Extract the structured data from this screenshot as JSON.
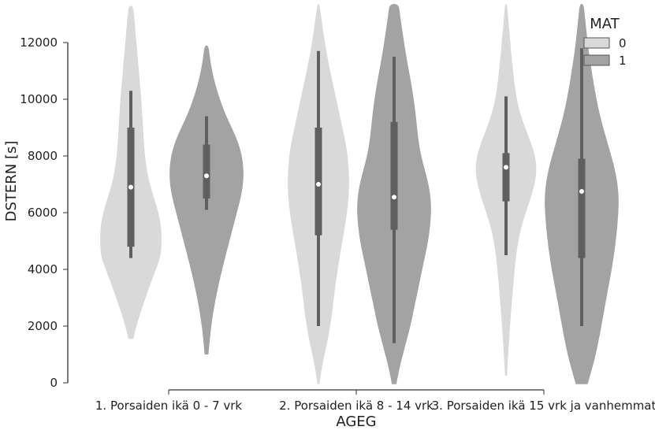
{
  "chart_data": {
    "type": "violin",
    "xlabel": "AGEG",
    "ylabel": "DSTERN [s]",
    "ylim": [
      0,
      12000
    ],
    "yticks": [
      0,
      2000,
      4000,
      6000,
      8000,
      10000,
      12000
    ],
    "categories": [
      "1. Porsaiden ikä 0 - 7 vrk",
      "2. Porsaiden ikä 8 - 14 vrk",
      "3. Porsaiden ikä 15 vrk ja vanhemmat"
    ],
    "legend": {
      "title": "MAT",
      "position": "top-right"
    },
    "series": [
      {
        "name": "0",
        "color": "#d9d9d9",
        "groups": [
          {
            "min": 4400,
            "q1": 4800,
            "median": 6900,
            "q3": 9000,
            "max": 10300,
            "kde_range": [
              1550,
              13300
            ],
            "density": [
              [
                1550,
                0.08
              ],
              [
                2000,
                0.18
              ],
              [
                2500,
                0.32
              ],
              [
                3000,
                0.48
              ],
              [
                3500,
                0.64
              ],
              [
                4000,
                0.82
              ],
              [
                4500,
                0.98
              ],
              [
                5000,
                1.0
              ],
              [
                5500,
                0.99
              ],
              [
                6000,
                0.9
              ],
              [
                6500,
                0.76
              ],
              [
                7000,
                0.62
              ],
              [
                7500,
                0.52
              ],
              [
                8000,
                0.46
              ],
              [
                8500,
                0.42
              ],
              [
                9000,
                0.4
              ],
              [
                9500,
                0.37
              ],
              [
                10000,
                0.34
              ],
              [
                10500,
                0.3
              ],
              [
                11000,
                0.26
              ],
              [
                11500,
                0.22
              ],
              [
                12000,
                0.18
              ],
              [
                12500,
                0.14
              ],
              [
                13000,
                0.1
              ],
              [
                13300,
                0.06
              ]
            ]
          },
          {
            "min": 2000,
            "q1": 5200,
            "median": 7000,
            "q3": 9000,
            "max": 11700,
            "kde_range": [
              -50,
              13500
            ],
            "density": [
              [
                -50,
                0.03
              ],
              [
                500,
                0.1
              ],
              [
                1000,
                0.2
              ],
              [
                1500,
                0.3
              ],
              [
                2000,
                0.38
              ],
              [
                2500,
                0.45
              ],
              [
                3000,
                0.5
              ],
              [
                3500,
                0.56
              ],
              [
                4000,
                0.63
              ],
              [
                4500,
                0.7
              ],
              [
                5000,
                0.78
              ],
              [
                5500,
                0.86
              ],
              [
                6000,
                0.93
              ],
              [
                6500,
                0.98
              ],
              [
                7000,
                1.0
              ],
              [
                7500,
                0.99
              ],
              [
                8000,
                0.95
              ],
              [
                8500,
                0.88
              ],
              [
                9000,
                0.78
              ],
              [
                9500,
                0.68
              ],
              [
                10000,
                0.58
              ],
              [
                10500,
                0.48
              ],
              [
                11000,
                0.38
              ],
              [
                11500,
                0.29
              ],
              [
                12000,
                0.21
              ],
              [
                12500,
                0.14
              ],
              [
                13000,
                0.08
              ],
              [
                13500,
                0.03
              ]
            ]
          },
          {
            "min": 4500,
            "q1": 6400,
            "median": 7600,
            "q3": 8100,
            "max": 10100,
            "kde_range": [
              250,
              13500
            ],
            "density": [
              [
                250,
                0.03
              ],
              [
                1000,
                0.07
              ],
              [
                2000,
                0.13
              ],
              [
                3000,
                0.2
              ],
              [
                4000,
                0.28
              ],
              [
                4500,
                0.33
              ],
              [
                5000,
                0.4
              ],
              [
                5500,
                0.5
              ],
              [
                6000,
                0.64
              ],
              [
                6500,
                0.8
              ],
              [
                7000,
                0.93
              ],
              [
                7500,
                1.0
              ],
              [
                8000,
                0.95
              ],
              [
                8500,
                0.8
              ],
              [
                9000,
                0.62
              ],
              [
                9500,
                0.46
              ],
              [
                10000,
                0.35
              ],
              [
                10500,
                0.28
              ],
              [
                11000,
                0.23
              ],
              [
                11500,
                0.18
              ],
              [
                12000,
                0.14
              ],
              [
                12500,
                0.1
              ],
              [
                13000,
                0.06
              ],
              [
                13500,
                0.03
              ]
            ]
          }
        ]
      },
      {
        "name": "1",
        "color": "#a3a3a3",
        "groups": [
          {
            "min": 6100,
            "q1": 6500,
            "median": 7300,
            "q3": 8400,
            "max": 9400,
            "kde_range": [
              1000,
              11900
            ],
            "density": [
              [
                1000,
                0.05
              ],
              [
                2000,
                0.12
              ],
              [
                3000,
                0.25
              ],
              [
                4000,
                0.42
              ],
              [
                5000,
                0.62
              ],
              [
                6000,
                0.82
              ],
              [
                6500,
                0.92
              ],
              [
                7000,
                0.99
              ],
              [
                7500,
                1.0
              ],
              [
                8000,
                0.96
              ],
              [
                8500,
                0.85
              ],
              [
                9000,
                0.68
              ],
              [
                9500,
                0.5
              ],
              [
                10000,
                0.36
              ],
              [
                10500,
                0.24
              ],
              [
                11000,
                0.15
              ],
              [
                11500,
                0.09
              ],
              [
                11900,
                0.05
              ]
            ]
          },
          {
            "min": 1400,
            "q1": 5400,
            "median": 6550,
            "q3": 9200,
            "max": 11500,
            "kde_range": [
              -50,
              13500
            ],
            "density": [
              [
                -50,
                0.06
              ],
              [
                500,
                0.14
              ],
              [
                1000,
                0.24
              ],
              [
                1500,
                0.34
              ],
              [
                2000,
                0.44
              ],
              [
                2500,
                0.52
              ],
              [
                3000,
                0.6
              ],
              [
                3500,
                0.68
              ],
              [
                4000,
                0.76
              ],
              [
                4500,
                0.84
              ],
              [
                5000,
                0.92
              ],
              [
                5500,
                0.97
              ],
              [
                6000,
                1.0
              ],
              [
                6500,
                0.99
              ],
              [
                7000,
                0.93
              ],
              [
                7500,
                0.83
              ],
              [
                8000,
                0.73
              ],
              [
                8500,
                0.66
              ],
              [
                9000,
                0.62
              ],
              [
                9500,
                0.58
              ],
              [
                10000,
                0.53
              ],
              [
                10500,
                0.47
              ],
              [
                11000,
                0.4
              ],
              [
                11500,
                0.33
              ],
              [
                12000,
                0.27
              ],
              [
                12500,
                0.21
              ],
              [
                13000,
                0.16
              ],
              [
                13500,
                0.12
              ]
            ]
          },
          {
            "min": 2000,
            "q1": 4400,
            "median": 6750,
            "q3": 7900,
            "max": 11800,
            "kde_range": [
              -50,
              13500
            ],
            "density": [
              [
                -50,
                0.16
              ],
              [
                500,
                0.28
              ],
              [
                1000,
                0.38
              ],
              [
                1500,
                0.46
              ],
              [
                2000,
                0.53
              ],
              [
                2500,
                0.6
              ],
              [
                3000,
                0.67
              ],
              [
                3500,
                0.74
              ],
              [
                4000,
                0.81
              ],
              [
                4500,
                0.87
              ],
              [
                5000,
                0.92
              ],
              [
                5500,
                0.96
              ],
              [
                6000,
                0.99
              ],
              [
                6500,
                1.0
              ],
              [
                7000,
                0.97
              ],
              [
                7500,
                0.9
              ],
              [
                8000,
                0.8
              ],
              [
                8500,
                0.69
              ],
              [
                9000,
                0.58
              ],
              [
                9500,
                0.48
              ],
              [
                10000,
                0.4
              ],
              [
                10500,
                0.33
              ],
              [
                11000,
                0.27
              ],
              [
                11500,
                0.21
              ],
              [
                12000,
                0.16
              ],
              [
                12500,
                0.12
              ],
              [
                13000,
                0.08
              ],
              [
                13500,
                0.05
              ]
            ]
          }
        ]
      }
    ]
  }
}
